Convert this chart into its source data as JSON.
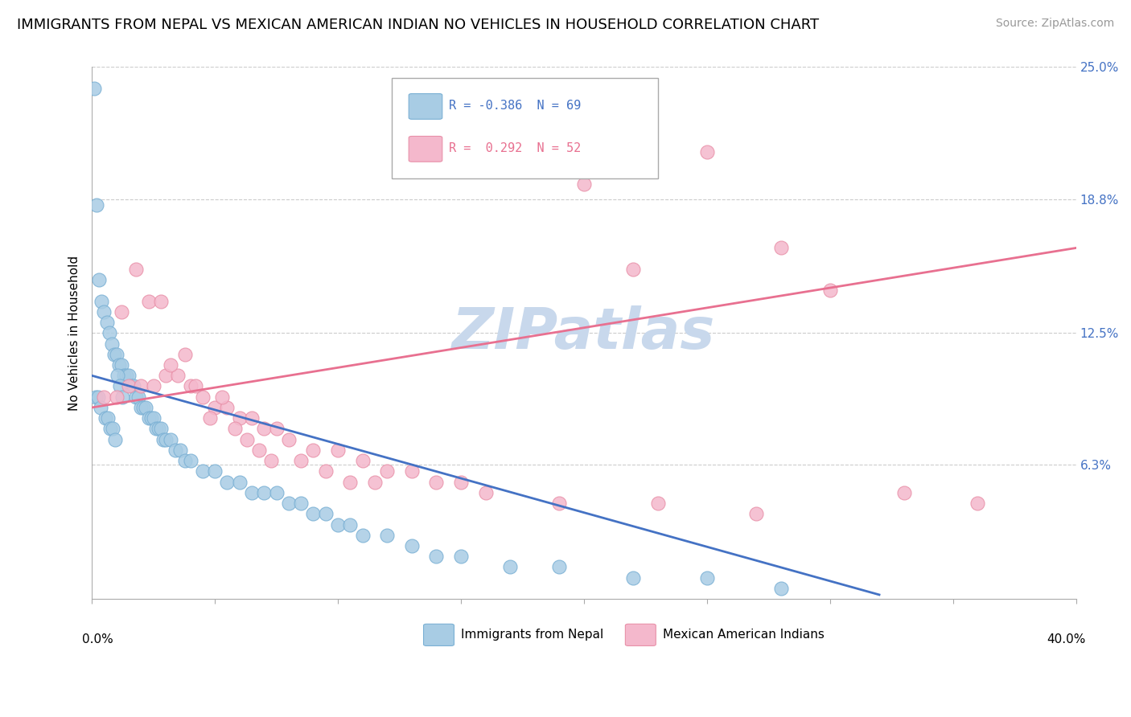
{
  "title": "IMMIGRANTS FROM NEPAL VS MEXICAN AMERICAN INDIAN NO VEHICLES IN HOUSEHOLD CORRELATION CHART",
  "source": "Source: ZipAtlas.com",
  "watermark": "ZIPatlas",
  "legend_entries": [
    {
      "label": "R = -0.386  N = 69",
      "color": "#a8cce4"
    },
    {
      "label": "R =  0.292  N = 52",
      "color": "#f4b8cc"
    }
  ],
  "legend_labels_bottom": [
    "Immigrants from Nepal",
    "Mexican American Indians"
  ],
  "blue_scatter_x": [
    0.1,
    0.2,
    0.3,
    0.4,
    0.5,
    0.6,
    0.7,
    0.8,
    0.9,
    1.0,
    1.1,
    1.2,
    1.3,
    1.4,
    1.5,
    1.6,
    1.7,
    1.8,
    1.9,
    2.0,
    2.1,
    2.2,
    2.3,
    2.4,
    2.5,
    2.6,
    2.7,
    2.8,
    2.9,
    3.0,
    3.2,
    3.4,
    3.6,
    3.8,
    4.0,
    4.5,
    5.0,
    5.5,
    6.0,
    6.5,
    7.0,
    7.5,
    8.0,
    8.5,
    9.0,
    9.5,
    10.0,
    10.5,
    11.0,
    12.0,
    13.0,
    14.0,
    15.0,
    17.0,
    19.0,
    22.0,
    25.0,
    28.0,
    0.15,
    0.25,
    0.35,
    0.55,
    0.65,
    0.75,
    0.85,
    0.95,
    1.05,
    1.15,
    1.25
  ],
  "blue_scatter_y": [
    24.0,
    18.5,
    15.0,
    14.0,
    13.5,
    13.0,
    12.5,
    12.0,
    11.5,
    11.5,
    11.0,
    11.0,
    10.5,
    10.5,
    10.5,
    10.0,
    10.0,
    9.5,
    9.5,
    9.0,
    9.0,
    9.0,
    8.5,
    8.5,
    8.5,
    8.0,
    8.0,
    8.0,
    7.5,
    7.5,
    7.5,
    7.0,
    7.0,
    6.5,
    6.5,
    6.0,
    6.0,
    5.5,
    5.5,
    5.0,
    5.0,
    5.0,
    4.5,
    4.5,
    4.0,
    4.0,
    3.5,
    3.5,
    3.0,
    3.0,
    2.5,
    2.0,
    2.0,
    1.5,
    1.5,
    1.0,
    1.0,
    0.5,
    9.5,
    9.5,
    9.0,
    8.5,
    8.5,
    8.0,
    8.0,
    7.5,
    10.5,
    10.0,
    9.5
  ],
  "pink_scatter_x": [
    0.5,
    1.0,
    1.5,
    2.0,
    2.5,
    3.0,
    3.5,
    4.0,
    4.5,
    5.0,
    5.5,
    6.0,
    6.5,
    7.0,
    7.5,
    8.0,
    9.0,
    10.0,
    11.0,
    12.0,
    13.0,
    14.0,
    15.0,
    17.0,
    20.0,
    22.0,
    25.0,
    28.0,
    30.0,
    33.0,
    36.0,
    1.2,
    1.8,
    2.3,
    2.8,
    3.2,
    3.8,
    4.2,
    4.8,
    5.3,
    5.8,
    6.3,
    6.8,
    7.3,
    8.5,
    9.5,
    10.5,
    11.5,
    16.0,
    19.0,
    23.0,
    27.0
  ],
  "pink_scatter_y": [
    9.5,
    9.5,
    10.0,
    10.0,
    10.0,
    10.5,
    10.5,
    10.0,
    9.5,
    9.0,
    9.0,
    8.5,
    8.5,
    8.0,
    8.0,
    7.5,
    7.0,
    7.0,
    6.5,
    6.0,
    6.0,
    5.5,
    5.5,
    20.5,
    19.5,
    15.5,
    21.0,
    16.5,
    14.5,
    5.0,
    4.5,
    13.5,
    15.5,
    14.0,
    14.0,
    11.0,
    11.5,
    10.0,
    8.5,
    9.5,
    8.0,
    7.5,
    7.0,
    6.5,
    6.5,
    6.0,
    5.5,
    5.5,
    5.0,
    4.5,
    4.5,
    4.0
  ],
  "blue_line_x": [
    0.0,
    32.0
  ],
  "blue_line_y": [
    10.5,
    0.2
  ],
  "pink_line_x": [
    0.0,
    40.0
  ],
  "pink_line_y": [
    9.0,
    16.5
  ],
  "xlim": [
    0,
    40
  ],
  "ylim": [
    0,
    25
  ],
  "blue_color": "#a8cce4",
  "pink_color": "#f4b8cc",
  "blue_edge_color": "#7ab0d4",
  "pink_edge_color": "#e890a8",
  "blue_line_color": "#4472c4",
  "pink_line_color": "#e87090",
  "ylabel_ticks": [
    0.0,
    6.3,
    12.5,
    18.8,
    25.0
  ],
  "ylabel_tick_labels": [
    "",
    "6.3%",
    "12.5%",
    "18.8%",
    "25.0%"
  ],
  "title_fontsize": 13,
  "source_fontsize": 10,
  "watermark_color": "#c8d8ec",
  "watermark_fontsize": 52
}
